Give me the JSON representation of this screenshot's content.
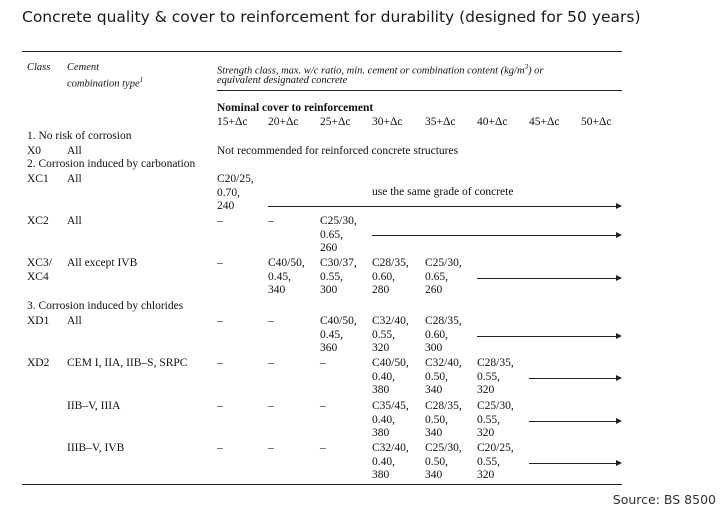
{
  "title": "Concrete quality & cover to reinforcement for durability (designed for 50 years)",
  "source": "Source: BS 8500",
  "headers": {
    "class": "Class",
    "cement_line1": "Cement",
    "cement_line2": "combination type",
    "cement_sup": "1",
    "strength_line1": "Strength class, max. w/c ratio, min. cement or combination content (kg/m",
    "strength_sup": "3",
    "strength_tail": ") or",
    "strength_line2": "equivalent designated concrete",
    "nominal": "Nominal cover to reinforcement",
    "covers": [
      "15+Δc",
      "20+Δc",
      "25+Δc",
      "30+Δc",
      "35+Δc",
      "40+Δc",
      "45+Δc",
      "50+Δc"
    ]
  },
  "sections": {
    "s1": "1. No risk of corrosion",
    "s2": "2. Corrosion induced by carbonation",
    "s3": "3. Corrosion induced by chlorides"
  },
  "rows": {
    "x0": {
      "class": "X0",
      "type": "All",
      "note": "Not recommended for reinforced concrete structures"
    },
    "xc1": {
      "class": "XC1",
      "type": "All",
      "c15": "C20/25,\n0.70,\n240",
      "note": "use the same grade of concrete"
    },
    "xc2": {
      "class": "XC2",
      "type": "All",
      "c15": "–",
      "c20": "–",
      "c25": "C25/30,\n0.65,\n260"
    },
    "xc34": {
      "class": "XC3/\nXC4",
      "type": "All except IVB",
      "c15": "–",
      "c20": "C40/50,\n0.45,\n340",
      "c25": "C30/37,\n0.55,\n300",
      "c30": "C28/35,\n0.60,\n280",
      "c35": "C25/30,\n0.65,\n260"
    },
    "xd1": {
      "class": "XD1",
      "type": "All",
      "c15": "–",
      "c20": "–",
      "c25": "C40/50,\n0.45,\n360",
      "c30": "C32/40,\n0.55,\n320",
      "c35": "C28/35,\n0.60,\n300"
    },
    "xd2a": {
      "class": "XD2",
      "type": "CEM I, IIA, IIB–S, SRPC",
      "c15": "–",
      "c20": "–",
      "c25": "–",
      "c30": "C40/50,\n0.40,\n380",
      "c35": "C32/40,\n0.50,\n340",
      "c40": "C28/35,\n0.55,\n320"
    },
    "xd2b": {
      "type": "IIB–V, IIIA",
      "c15": "–",
      "c20": "–",
      "c25": "–",
      "c30": "C35/45,\n0.40,\n380",
      "c35": "C28/35,\n0.50,\n340",
      "c40": "C25/30,\n0.55,\n320"
    },
    "xd2c": {
      "type": "IIIB–V, IVB",
      "c15": "–",
      "c20": "–",
      "c25": "–",
      "c30": "C32/40,\n0.40,\n380",
      "c35": "C25/30,\n0.50,\n340",
      "c40": "C20/25,\n0.55,\n320"
    }
  }
}
